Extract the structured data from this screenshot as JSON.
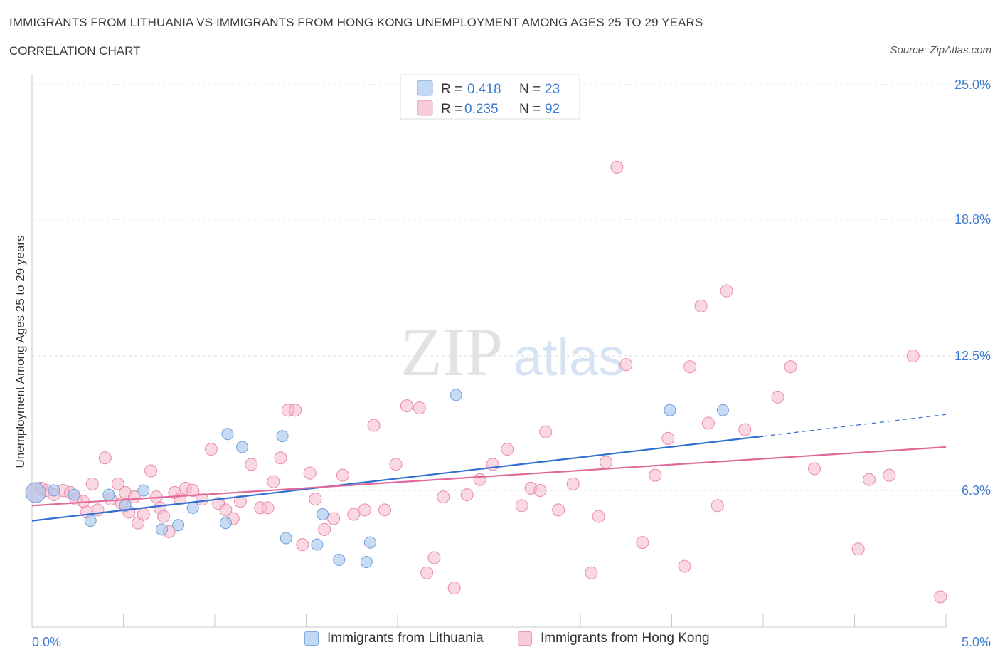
{
  "header": {
    "title": "IMMIGRANTS FROM LITHUANIA VS IMMIGRANTS FROM HONG KONG UNEMPLOYMENT AMONG AGES 25 TO 29 YEARS",
    "subtitle": "CORRELATION CHART",
    "source": "Source: ZipAtlas.com"
  },
  "watermark": {
    "zip": "ZIP",
    "atlas": "atlas"
  },
  "legend_top": [
    {
      "r_label": "R =",
      "r_value": "0.418",
      "n_label": "N =",
      "n_value": "23"
    },
    {
      "r_label": "R =",
      "r_value": "0.235",
      "n_label": "N =",
      "n_value": "92"
    }
  ],
  "legend_bottom": [
    {
      "label": "Immigrants from Lithuania"
    },
    {
      "label": "Immigrants from Hong Kong"
    }
  ],
  "colors": {
    "lithuania_fill": "#aac8f0",
    "lithuania_stroke": "#6f9fd8",
    "lithuania_line": "#2f6fd0",
    "hongkong_fill": "#f5b8cb",
    "hongkong_stroke": "#e98aa8",
    "hongkong_line": "#e0689a",
    "axis_value": "#3f7bd0",
    "grid": "#dddddd"
  },
  "chart_data": {
    "type": "scatter",
    "title": "IMMIGRANTS FROM LITHUANIA VS IMMIGRANTS FROM HONG KONG UNEMPLOYMENT AMONG AGES 25 TO 29 YEARS",
    "xlabel": "",
    "ylabel": "Unemployment Among Ages 25 to 29 years",
    "xlim": [
      0,
      5
    ],
    "ylim": [
      0,
      25
    ],
    "x_tick_labels": [
      "0.0%",
      "5.0%"
    ],
    "y_ticks": [
      6.3,
      12.5,
      18.8,
      25.0
    ],
    "y_tick_labels": [
      "6.3%",
      "12.5%",
      "18.8%",
      "25.0%"
    ],
    "grid": true,
    "legend_position": "top-center",
    "series": [
      {
        "name": "Immigrants from Lithuania",
        "R": 0.418,
        "N": 23,
        "trend": {
          "x": [
            0,
            4.0
          ],
          "y": [
            4.9,
            8.8
          ],
          "dashed_extension_to": [
            5.0,
            9.8
          ]
        },
        "points": [
          [
            0.02,
            6.2
          ],
          [
            0.12,
            6.3
          ],
          [
            0.23,
            6.1
          ],
          [
            0.32,
            4.9
          ],
          [
            0.42,
            6.1
          ],
          [
            0.51,
            5.6
          ],
          [
            0.61,
            6.3
          ],
          [
            0.71,
            4.5
          ],
          [
            0.8,
            4.7
          ],
          [
            0.88,
            5.5
          ],
          [
            1.06,
            4.8
          ],
          [
            1.07,
            8.9
          ],
          [
            1.15,
            8.3
          ],
          [
            1.37,
            8.8
          ],
          [
            1.39,
            4.1
          ],
          [
            1.56,
            3.8
          ],
          [
            1.59,
            5.2
          ],
          [
            1.68,
            3.1
          ],
          [
            1.83,
            3.0
          ],
          [
            1.85,
            3.9
          ],
          [
            2.32,
            10.7
          ],
          [
            3.49,
            10.0
          ],
          [
            3.78,
            10.0
          ]
        ]
      },
      {
        "name": "Immigrants from Hong Kong",
        "R": 0.235,
        "N": 92,
        "trend": {
          "x": [
            0,
            5.0
          ],
          "y": [
            5.6,
            8.3
          ]
        },
        "points": [
          [
            0.02,
            6.2
          ],
          [
            0.05,
            6.4
          ],
          [
            0.08,
            6.3
          ],
          [
            0.12,
            6.1
          ],
          [
            0.17,
            6.3
          ],
          [
            0.21,
            6.2
          ],
          [
            0.24,
            5.9
          ],
          [
            0.28,
            5.8
          ],
          [
            0.3,
            5.3
          ],
          [
            0.33,
            6.6
          ],
          [
            0.36,
            5.4
          ],
          [
            0.4,
            7.8
          ],
          [
            0.43,
            5.9
          ],
          [
            0.47,
            6.6
          ],
          [
            0.49,
            5.7
          ],
          [
            0.51,
            6.2
          ],
          [
            0.53,
            5.3
          ],
          [
            0.56,
            6.0
          ],
          [
            0.58,
            4.8
          ],
          [
            0.61,
            5.2
          ],
          [
            0.65,
            7.2
          ],
          [
            0.68,
            6.0
          ],
          [
            0.7,
            5.5
          ],
          [
            0.72,
            5.1
          ],
          [
            0.75,
            4.4
          ],
          [
            0.78,
            6.2
          ],
          [
            0.81,
            5.9
          ],
          [
            0.84,
            6.4
          ],
          [
            0.88,
            6.3
          ],
          [
            0.93,
            5.9
          ],
          [
            0.98,
            8.2
          ],
          [
            1.02,
            5.7
          ],
          [
            1.06,
            5.4
          ],
          [
            1.1,
            5.0
          ],
          [
            1.14,
            5.8
          ],
          [
            1.2,
            7.5
          ],
          [
            1.25,
            5.5
          ],
          [
            1.29,
            5.5
          ],
          [
            1.32,
            6.7
          ],
          [
            1.36,
            7.8
          ],
          [
            1.4,
            10.0
          ],
          [
            1.44,
            10.0
          ],
          [
            1.48,
            3.8
          ],
          [
            1.52,
            7.1
          ],
          [
            1.55,
            5.9
          ],
          [
            1.6,
            4.5
          ],
          [
            1.65,
            5.0
          ],
          [
            1.7,
            7.0
          ],
          [
            1.76,
            5.2
          ],
          [
            1.82,
            5.4
          ],
          [
            1.87,
            9.3
          ],
          [
            1.93,
            5.4
          ],
          [
            1.99,
            7.5
          ],
          [
            2.05,
            10.2
          ],
          [
            2.12,
            10.1
          ],
          [
            2.16,
            2.5
          ],
          [
            2.2,
            3.2
          ],
          [
            2.25,
            6.0
          ],
          [
            2.31,
            1.8
          ],
          [
            2.38,
            6.1
          ],
          [
            2.45,
            6.8
          ],
          [
            2.52,
            7.5
          ],
          [
            2.6,
            8.2
          ],
          [
            2.68,
            5.6
          ],
          [
            2.73,
            6.4
          ],
          [
            2.78,
            6.3
          ],
          [
            2.81,
            9.0
          ],
          [
            2.88,
            5.4
          ],
          [
            2.96,
            6.6
          ],
          [
            3.06,
            2.5
          ],
          [
            3.1,
            5.1
          ],
          [
            3.14,
            7.6
          ],
          [
            3.2,
            21.2
          ],
          [
            3.25,
            12.1
          ],
          [
            3.34,
            3.9
          ],
          [
            3.41,
            7.0
          ],
          [
            3.48,
            8.7
          ],
          [
            3.57,
            2.8
          ],
          [
            3.6,
            12.0
          ],
          [
            3.66,
            14.8
          ],
          [
            3.7,
            9.4
          ],
          [
            3.75,
            5.6
          ],
          [
            3.8,
            15.5
          ],
          [
            3.9,
            9.1
          ],
          [
            4.08,
            10.6
          ],
          [
            4.15,
            12.0
          ],
          [
            4.28,
            7.3
          ],
          [
            4.52,
            3.6
          ],
          [
            4.58,
            6.8
          ],
          [
            4.69,
            7.0
          ],
          [
            4.82,
            12.5
          ],
          [
            4.97,
            1.4
          ]
        ]
      }
    ]
  }
}
